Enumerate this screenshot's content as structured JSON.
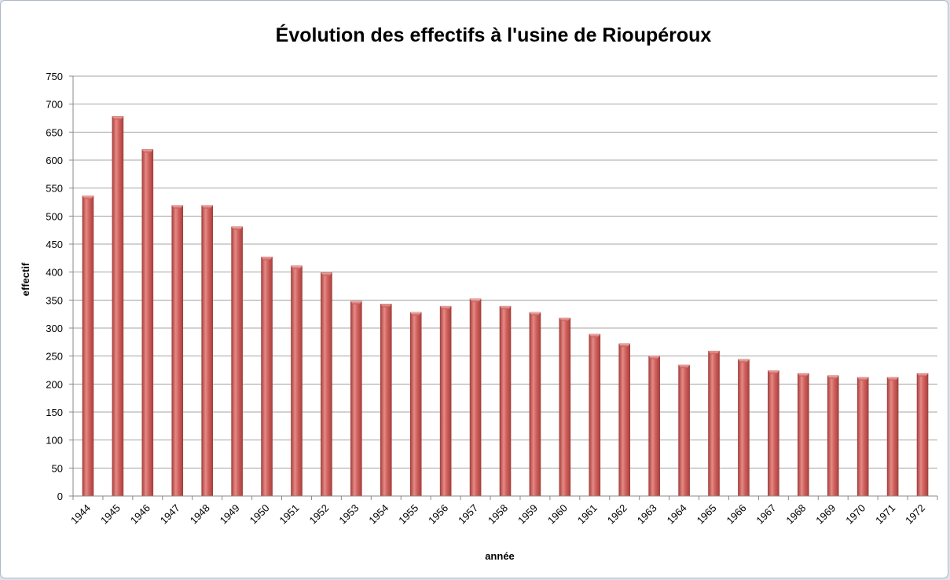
{
  "chart_data": {
    "type": "bar",
    "title": "Évolution des effectifs à l'usine de Rioupéroux",
    "xlabel": "année",
    "ylabel": "effectif",
    "categories": [
      "1944",
      "1945",
      "1946",
      "1947",
      "1948",
      "1949",
      "1950",
      "1951",
      "1952",
      "1953",
      "1954",
      "1955",
      "1956",
      "1957",
      "1958",
      "1959",
      "1960",
      "1961",
      "1962",
      "1963",
      "1964",
      "1965",
      "1966",
      "1967",
      "1968",
      "1969",
      "1970",
      "1971",
      "1972"
    ],
    "values": [
      536,
      678,
      619,
      519,
      519,
      481,
      427,
      411,
      399,
      348,
      343,
      328,
      339,
      352,
      339,
      328,
      318,
      289,
      272,
      250,
      234,
      259,
      244,
      224,
      219,
      215,
      212,
      212,
      219
    ],
    "ylim": [
      0,
      750
    ],
    "yticks": [
      0,
      50,
      100,
      150,
      200,
      250,
      300,
      350,
      400,
      450,
      500,
      550,
      600,
      650,
      700,
      750
    ],
    "grid": true,
    "legend": "none",
    "bar_color": "#c0504d",
    "bar_highlight": "#e58a86"
  }
}
